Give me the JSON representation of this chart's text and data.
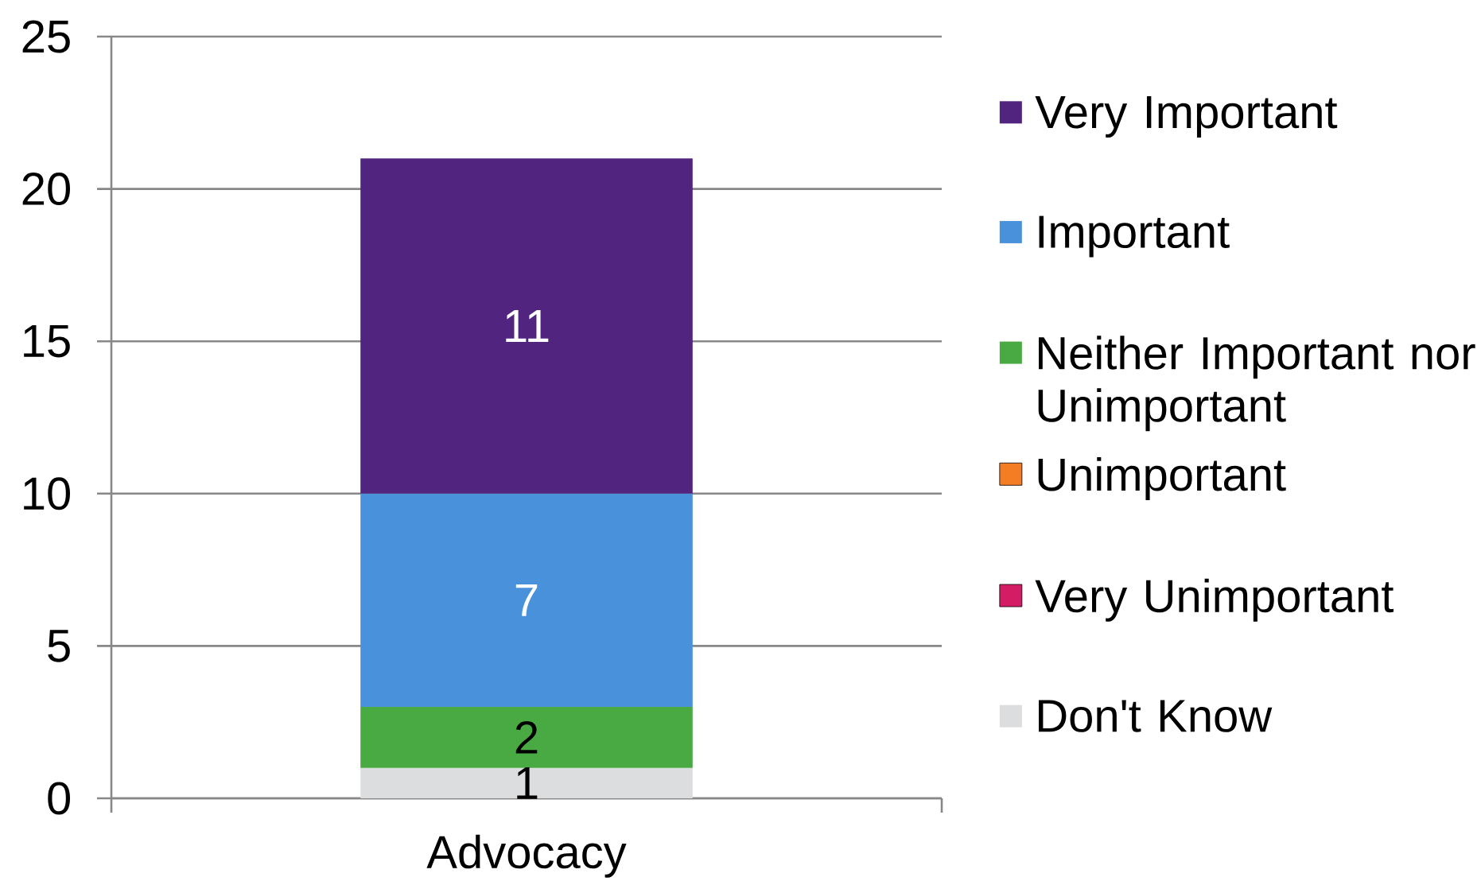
{
  "chart_data": {
    "type": "bar",
    "stacked": true,
    "categories": [
      "Advocacy"
    ],
    "series": [
      {
        "name": "Don't Know",
        "color": "#dcdddf",
        "values": [
          1
        ]
      },
      {
        "name": "Very Unimportant",
        "color": "#d41c64",
        "values": [
          null
        ]
      },
      {
        "name": "Unimportant",
        "color": "#f47d23",
        "values": [
          null
        ]
      },
      {
        "name": "Neither Important nor Unimportant",
        "color": "#49a942",
        "values": [
          2
        ]
      },
      {
        "name": "Important",
        "color": "#4a91db",
        "values": [
          7
        ]
      },
      {
        "name": "Very Important",
        "color": "#51247f",
        "values": [
          11
        ]
      }
    ],
    "ylim": [
      0,
      25
    ],
    "yticks": [
      0,
      5,
      10,
      15,
      20,
      25
    ],
    "grid": "y",
    "legend": "right",
    "data_labels": true
  }
}
